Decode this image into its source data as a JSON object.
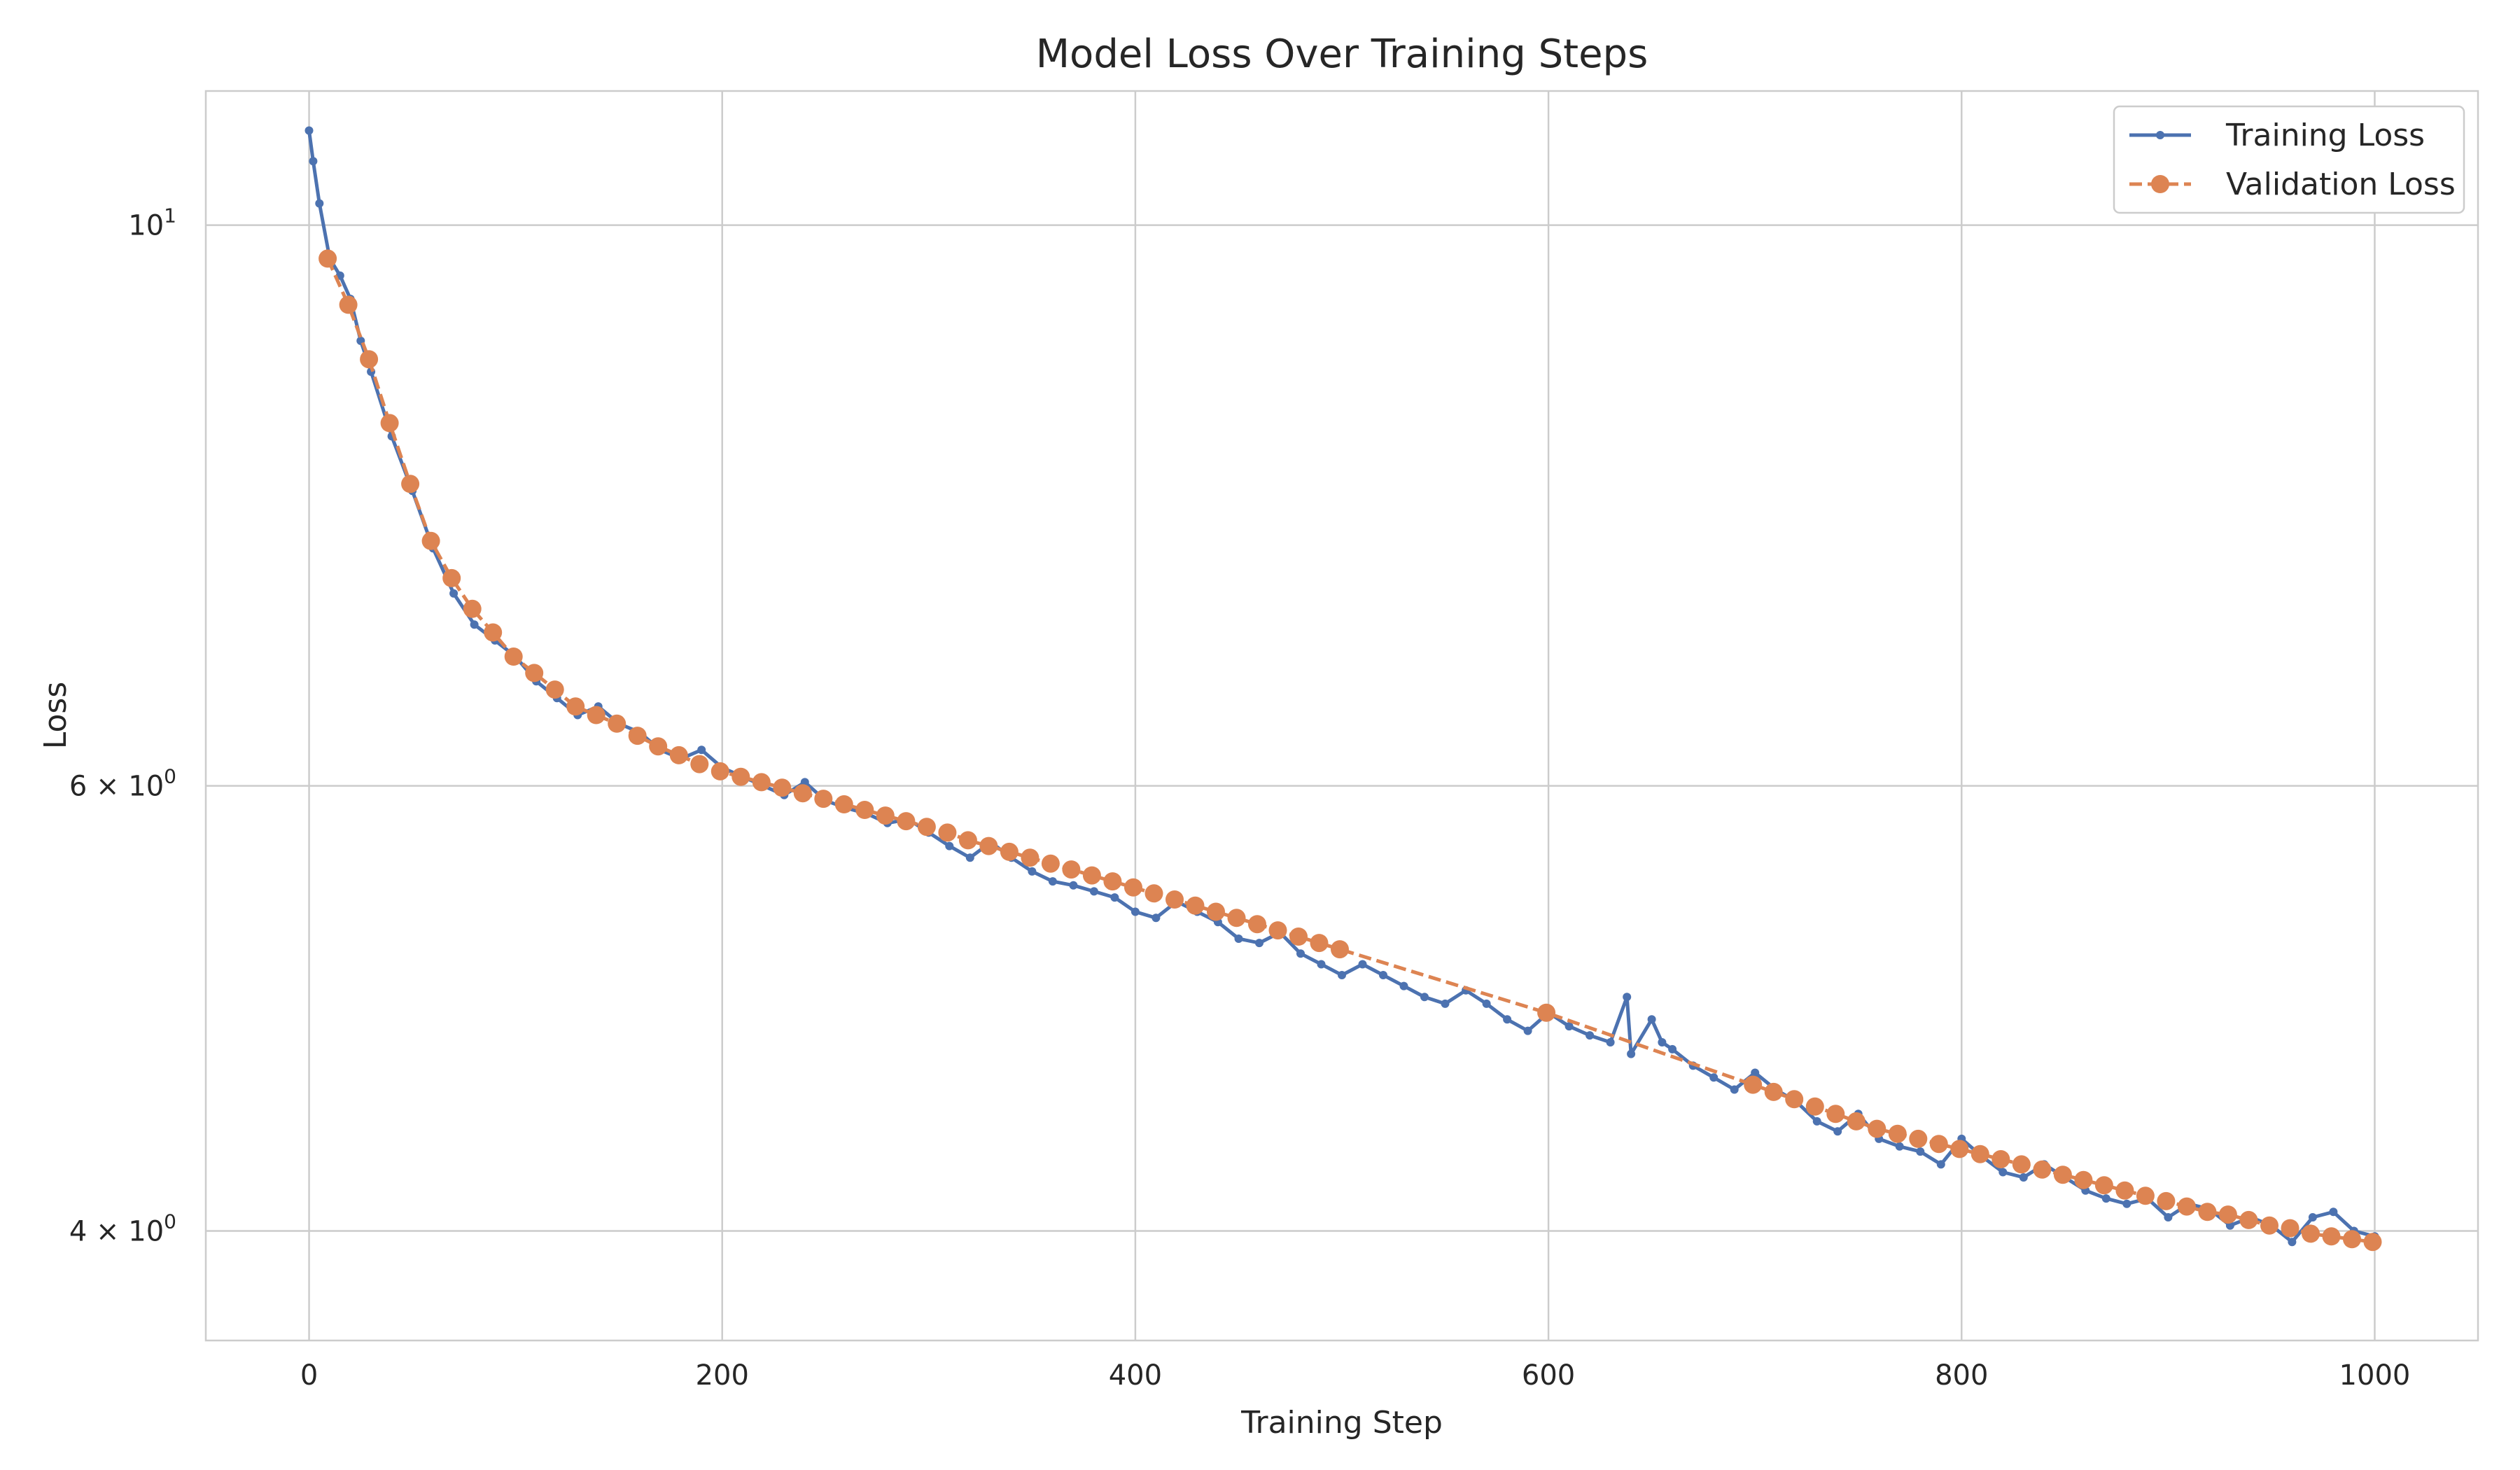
{
  "chart_data": {
    "type": "line",
    "title": "Model Loss Over Training Steps",
    "xlabel": "Training Step",
    "ylabel": "Loss",
    "xlim": [
      -50,
      1050
    ],
    "ylim": [
      3.62,
      11.3
    ],
    "yscale": "log",
    "grid": true,
    "legend_position": "top-right",
    "x_ticks": [
      0,
      200,
      400,
      600,
      800,
      1000
    ],
    "x_tick_labels": [
      "0",
      "200",
      "400",
      "600",
      "800",
      "1000"
    ],
    "y_ticks": [
      {
        "value": 10,
        "base": "10",
        "exp": "1"
      },
      {
        "value": 6,
        "base": "6 × 10",
        "exp": "0"
      },
      {
        "value": 4,
        "base": "4 × 10",
        "exp": "0"
      }
    ],
    "colors": {
      "training": "#4c72b0",
      "validation": "#dd8452",
      "grid": "#cccccc",
      "axes": "#cccccc",
      "text": "#262626"
    },
    "series": [
      {
        "name": "Training Loss",
        "style": "solid-line-small-markers",
        "x": [
          0,
          2,
          5,
          10,
          15,
          20,
          25,
          30,
          40,
          50,
          60,
          70,
          80,
          90,
          100,
          110,
          120,
          130,
          140,
          150,
          160,
          170,
          180,
          190,
          200,
          210,
          220,
          230,
          240,
          250,
          260,
          270,
          280,
          290,
          300,
          310,
          320,
          330,
          340,
          350,
          360,
          370,
          380,
          390,
          400,
          410,
          420,
          430,
          440,
          450,
          460,
          470,
          480,
          490,
          500,
          510,
          520,
          530,
          540,
          550,
          560,
          570,
          580,
          590,
          600,
          610,
          620,
          630,
          638,
          640,
          650,
          655,
          660,
          670,
          680,
          690,
          700,
          710,
          720,
          730,
          740,
          750,
          760,
          770,
          780,
          790,
          800,
          810,
          820,
          830,
          840,
          850,
          860,
          870,
          880,
          890,
          900,
          910,
          920,
          930,
          940,
          950,
          960,
          970,
          980,
          990,
          1000
        ],
        "y": [
          10.9,
          10.6,
          10.2,
          9.7,
          9.55,
          9.35,
          9.0,
          8.75,
          8.25,
          7.85,
          7.45,
          7.15,
          6.95,
          6.85,
          6.75,
          6.6,
          6.5,
          6.4,
          6.45,
          6.35,
          6.3,
          6.2,
          6.15,
          6.2,
          6.1,
          6.05,
          6.0,
          5.95,
          6.02,
          5.92,
          5.88,
          5.85,
          5.8,
          5.82,
          5.75,
          5.68,
          5.62,
          5.7,
          5.62,
          5.55,
          5.5,
          5.48,
          5.45,
          5.42,
          5.35,
          5.32,
          5.4,
          5.35,
          5.3,
          5.22,
          5.2,
          5.25,
          5.15,
          5.1,
          5.05,
          5.1,
          5.05,
          5.0,
          4.95,
          4.92,
          4.98,
          4.92,
          4.85,
          4.8,
          4.88,
          4.82,
          4.78,
          4.75,
          4.95,
          4.7,
          4.85,
          4.75,
          4.72,
          4.65,
          4.6,
          4.55,
          4.62,
          4.55,
          4.5,
          4.42,
          4.38,
          4.45,
          4.35,
          4.32,
          4.3,
          4.25,
          4.35,
          4.28,
          4.22,
          4.2,
          4.25,
          4.2,
          4.15,
          4.12,
          4.1,
          4.12,
          4.05,
          4.1,
          4.08,
          4.02,
          4.05,
          4.02,
          3.96,
          4.05,
          4.07,
          4.0,
          3.98
        ]
      },
      {
        "name": "Validation Loss",
        "style": "dashed-line-large-markers",
        "x": [
          9,
          19,
          29,
          39,
          49,
          59,
          69,
          79,
          89,
          99,
          109,
          119,
          129,
          139,
          149,
          159,
          169,
          179,
          189,
          199,
          209,
          219,
          229,
          239,
          249,
          259,
          269,
          279,
          289,
          299,
          309,
          319,
          329,
          339,
          349,
          359,
          369,
          379,
          389,
          399,
          409,
          419,
          429,
          439,
          449,
          459,
          469,
          479,
          489,
          499,
          599,
          699,
          709,
          719,
          729,
          739,
          749,
          759,
          769,
          779,
          789,
          799,
          809,
          819,
          829,
          839,
          849,
          859,
          869,
          879,
          889,
          899,
          909,
          919,
          929,
          939,
          949,
          959,
          969,
          979,
          989,
          999
        ],
        "y": [
          9.7,
          9.3,
          8.85,
          8.35,
          7.9,
          7.5,
          7.25,
          7.05,
          6.9,
          6.75,
          6.65,
          6.55,
          6.45,
          6.4,
          6.35,
          6.28,
          6.22,
          6.17,
          6.12,
          6.08,
          6.05,
          6.02,
          5.99,
          5.96,
          5.93,
          5.9,
          5.87,
          5.84,
          5.81,
          5.78,
          5.75,
          5.71,
          5.68,
          5.65,
          5.62,
          5.59,
          5.56,
          5.53,
          5.5,
          5.47,
          5.44,
          5.41,
          5.38,
          5.35,
          5.32,
          5.29,
          5.26,
          5.23,
          5.2,
          5.17,
          4.88,
          4.57,
          4.54,
          4.51,
          4.48,
          4.45,
          4.42,
          4.39,
          4.37,
          4.35,
          4.33,
          4.31,
          4.29,
          4.27,
          4.25,
          4.23,
          4.21,
          4.19,
          4.17,
          4.15,
          4.13,
          4.11,
          4.09,
          4.07,
          4.06,
          4.04,
          4.02,
          4.01,
          3.99,
          3.98,
          3.97,
          3.96
        ]
      }
    ]
  }
}
